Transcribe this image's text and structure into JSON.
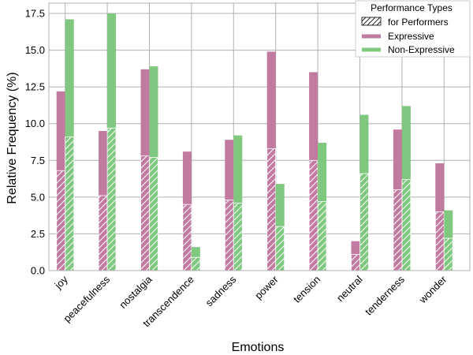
{
  "chart_data": {
    "type": "bar",
    "xlabel": "Emotions",
    "ylabel": "Relative Frequency (%)",
    "ylim": [
      0,
      18.2
    ],
    "yticks": [
      "0.0",
      "2.5",
      "5.0",
      "7.5",
      "10.0",
      "12.5",
      "15.0",
      "17.5"
    ],
    "grid": true,
    "legend": {
      "title": "Performance Types",
      "placement": "top-right",
      "entries": [
        {
          "label": "for Performers",
          "style": "hatch"
        },
        {
          "label": "Expressive",
          "color": "#c27ba0"
        },
        {
          "label": "Non-Expressive",
          "color": "#80c880"
        }
      ]
    },
    "categories": [
      "joy",
      "peacefulness",
      "nostalgia",
      "transcendence",
      "sadness",
      "power",
      "tension",
      "neutral",
      "tenderness",
      "wonder"
    ],
    "series": [
      {
        "name": "Expressive",
        "color": "#c27ba0",
        "values": [
          12.2,
          9.5,
          13.7,
          8.1,
          8.9,
          14.9,
          13.5,
          2.0,
          9.6,
          7.3
        ],
        "for_performers": [
          6.8,
          5.1,
          7.8,
          4.5,
          4.8,
          8.3,
          7.5,
          1.1,
          5.5,
          4.0
        ]
      },
      {
        "name": "Non-Expressive",
        "color": "#80c880",
        "values": [
          17.1,
          17.5,
          13.9,
          1.6,
          9.2,
          5.9,
          8.7,
          10.6,
          11.2,
          4.1
        ],
        "for_performers": [
          9.1,
          9.7,
          7.7,
          0.9,
          4.6,
          3.0,
          4.7,
          6.6,
          6.2,
          2.2
        ]
      }
    ]
  }
}
